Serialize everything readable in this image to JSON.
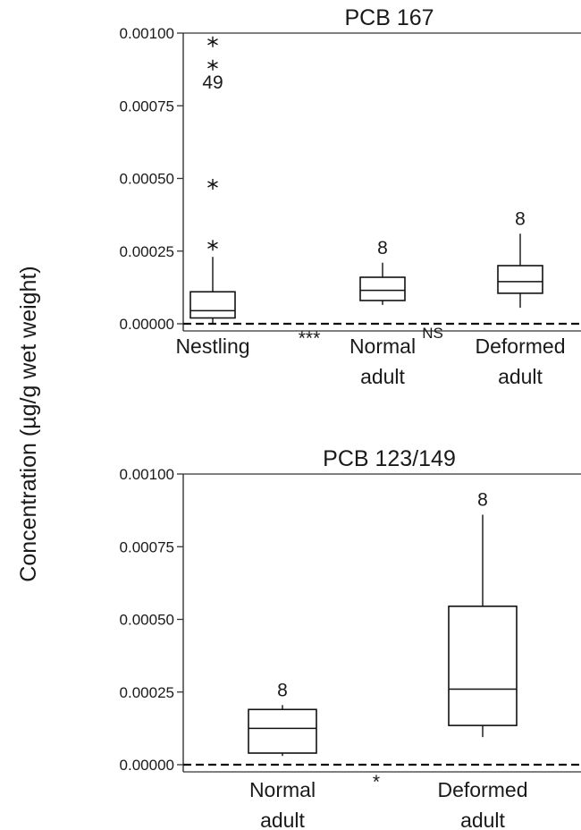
{
  "y_axis_label": "Concentration (µg/g wet weight)",
  "chart_data": [
    {
      "type": "box",
      "title": "PCB 167",
      "ylabel": "Concentration (µg/g wet weight)",
      "ylim": [
        0,
        0.001
      ],
      "yticks": [
        "0.00000",
        "0.00025",
        "0.00050",
        "0.00075",
        "0.00100"
      ],
      "ytick_values": [
        0,
        0.00025,
        0.0005,
        0.00075,
        0.001
      ],
      "baseline_dashed": 0,
      "categories": [
        {
          "label": [
            "Nestling"
          ],
          "q1": 2e-05,
          "median": 4.5e-05,
          "q3": 0.00011,
          "whisker_low": 0.0,
          "whisker_high": 0.00023,
          "n_label": "",
          "outliers": [
            {
              "value": 0.00097,
              "label": ""
            },
            {
              "value": 0.00089,
              "label": "49"
            },
            {
              "value": 0.00048,
              "label": ""
            },
            {
              "value": 0.00027,
              "label": ""
            }
          ]
        },
        {
          "label": [
            "Normal",
            "adult"
          ],
          "q1": 8e-05,
          "median": 0.000115,
          "q3": 0.00016,
          "whisker_low": 6.5e-05,
          "whisker_high": 0.00021,
          "n_label": "8",
          "outliers": []
        },
        {
          "label": [
            "Deformed",
            "adult"
          ],
          "q1": 0.000105,
          "median": 0.000145,
          "q3": 0.0002,
          "whisker_low": 5.5e-05,
          "whisker_high": 0.00031,
          "n_label": "8",
          "outliers": []
        }
      ],
      "significance": [
        {
          "between": [
            0,
            1
          ],
          "text": "***"
        },
        {
          "between": [
            1,
            2
          ],
          "text": "NS"
        }
      ]
    },
    {
      "type": "box",
      "title": "PCB 123/149",
      "ylabel": "Concentration (µg/g wet weight)",
      "ylim": [
        0,
        0.001
      ],
      "yticks": [
        "0.00000",
        "0.00025",
        "0.00050",
        "0.00075",
        "0.00100"
      ],
      "ytick_values": [
        0,
        0.00025,
        0.0005,
        0.00075,
        0.001
      ],
      "baseline_dashed": 0,
      "categories": [
        {
          "label": [
            "Normal",
            "adult"
          ],
          "q1": 4e-05,
          "median": 0.000125,
          "q3": 0.00019,
          "whisker_low": 3e-05,
          "whisker_high": 0.000205,
          "n_label": "8",
          "outliers": []
        },
        {
          "label": [
            "Deformed",
            "adult"
          ],
          "q1": 0.000135,
          "median": 0.00026,
          "q3": 0.000545,
          "whisker_low": 9.5e-05,
          "whisker_high": 0.00086,
          "n_label": "8",
          "outliers": []
        }
      ],
      "significance": [
        {
          "between": [
            0,
            1
          ],
          "text": "*"
        }
      ]
    }
  ]
}
